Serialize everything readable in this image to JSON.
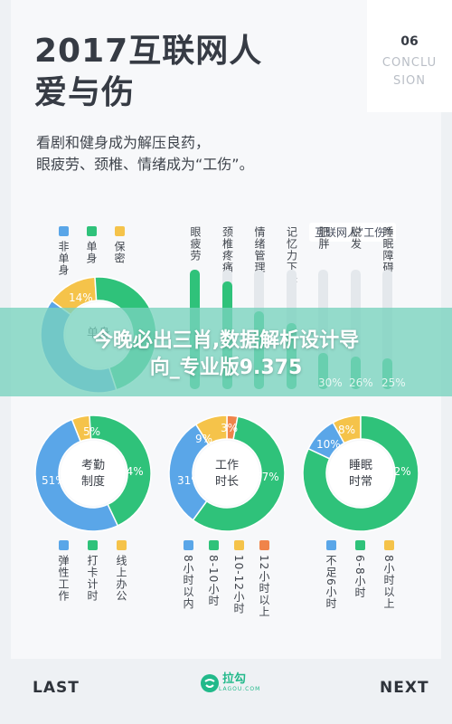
{
  "header": {
    "title_line1": "2017互联网人",
    "title_line2": "爱与伤",
    "subtitle_line1": "看剧和健身成为解压良药，",
    "subtitle_line2": "眼疲劳、颈椎、情绪成为“工伤”。",
    "conclusion_num": "06",
    "conclusion_label": "CONCLU\nSION"
  },
  "top_legend": [
    {
      "label": "非单身",
      "color": "#5aa6e8"
    },
    {
      "label": "单身",
      "color": "#2fc27a"
    },
    {
      "label": "保密",
      "color": "#f5c34a"
    }
  ],
  "injury_badge": "互联网人“工伤”",
  "injury_bars": [
    {
      "label": "眼疲劳",
      "fill": 1.0
    },
    {
      "label": "颈椎疼痛",
      "fill": 0.9
    },
    {
      "label": "情绪管理",
      "fill": 0.65
    },
    {
      "label": "记忆力下降",
      "fill": 0.55
    },
    {
      "label": "肥胖",
      "fill": 0.3
    },
    {
      "label": "脱发",
      "fill": 0.27
    },
    {
      "label": "睡眠障碍",
      "fill": 0.26
    }
  ],
  "injury_percents": [
    "30%",
    "26%",
    "25%"
  ],
  "overlay": {
    "line1": "今晚必出三肖,数据解析设计导",
    "line2": "向_专业版9.375"
  },
  "donut_top": {
    "center": "单身",
    "segments": [
      {
        "label": "14%",
        "value": 14,
        "color": "#f5c34a"
      },
      {
        "label": "",
        "value": 46,
        "color": "#2fc27a"
      },
      {
        "label": "",
        "value": 40,
        "color": "#5aa6e8"
      }
    ]
  },
  "donut_work": {
    "center": "考勤\n制度",
    "segments": [
      {
        "label": "5%",
        "value": 5,
        "color": "#f5c34a"
      },
      {
        "label": "44%",
        "value": 44,
        "color": "#2fc27a"
      },
      {
        "label": "51%",
        "value": 51,
        "color": "#5aa6e8"
      }
    ],
    "legend": [
      {
        "label": "弹性工作",
        "color": "#5aa6e8"
      },
      {
        "label": "打卡计时",
        "color": "#2fc27a"
      },
      {
        "label": "线上办公",
        "color": "#f5c34a"
      }
    ]
  },
  "donut_hours": {
    "center": "工作\n时长",
    "segments": [
      {
        "label": "3%",
        "value": 3,
        "color": "#f0844a"
      },
      {
        "label": "57%",
        "value": 57,
        "color": "#2fc27a"
      },
      {
        "label": "31%",
        "value": 31,
        "color": "#5aa6e8"
      },
      {
        "label": "9%",
        "value": 9,
        "color": "#f5c34a"
      }
    ],
    "legend": [
      {
        "label": "8小时以内",
        "color": "#5aa6e8"
      },
      {
        "label": "8-10小时",
        "color": "#2fc27a"
      },
      {
        "label": "10-12小时",
        "color": "#f5c34a"
      },
      {
        "label": "12小时以上",
        "color": "#f0844a"
      }
    ]
  },
  "donut_sleep": {
    "center": "睡眠\n时常",
    "segments": [
      {
        "label": "8%",
        "value": 8,
        "color": "#f5c34a"
      },
      {
        "label": "82%",
        "value": 82,
        "color": "#2fc27a"
      },
      {
        "label": "10%",
        "value": 10,
        "color": "#5aa6e8"
      }
    ],
    "legend": [
      {
        "label": "不足6小时",
        "color": "#5aa6e8"
      },
      {
        "label": "6-8小时",
        "color": "#2fc27a"
      },
      {
        "label": "8小时以上",
        "color": "#f5c34a"
      }
    ]
  },
  "footer": {
    "last": "LAST",
    "next": "NEXT",
    "logo": "拉勾",
    "logo_sub": "LAGOU.COM"
  }
}
